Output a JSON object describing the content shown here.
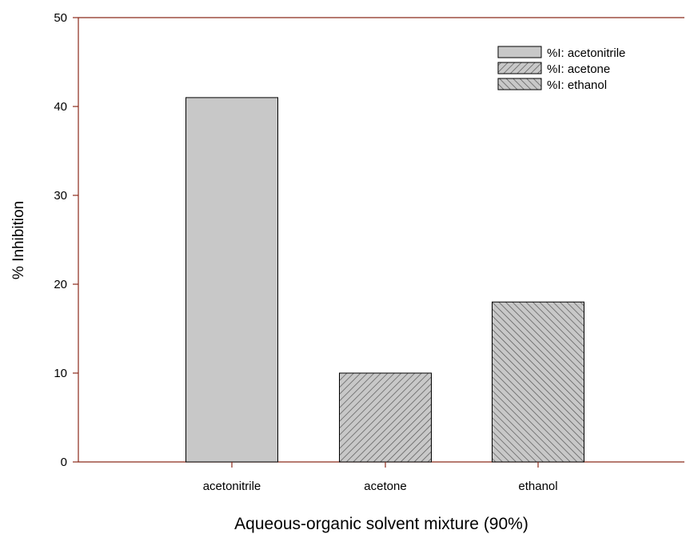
{
  "chart_data": {
    "type": "bar",
    "title": "",
    "xlabel": "Aqueous-organic solvent mixture (90%)",
    "ylabel": "% Inhibition",
    "categories": [
      "acetonitrile",
      "acetone",
      "ethanol"
    ],
    "series": [
      {
        "name": "%I: acetonitrile",
        "values": [
          41,
          null,
          null
        ],
        "fill": "#c8c8c8",
        "pattern": "solid"
      },
      {
        "name": "%I: acetone",
        "values": [
          null,
          10,
          null
        ],
        "fill": "#c8c8c8",
        "pattern": "hatch-forward"
      },
      {
        "name": "%I: ethanol",
        "values": [
          null,
          null,
          18
        ],
        "fill": "#c8c8c8",
        "pattern": "hatch-backward"
      }
    ],
    "ylim": [
      0,
      50
    ],
    "yticks": [
      "0",
      "10",
      "20",
      "30",
      "40",
      "50"
    ],
    "grid": false,
    "legend": "top-right",
    "axis_color": "#8b2a1a",
    "bar_edge_color": "#000000"
  }
}
